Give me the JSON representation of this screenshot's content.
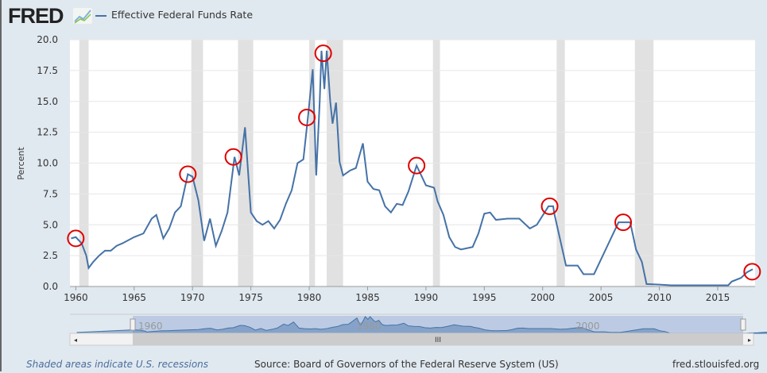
{
  "header": {
    "logo": "FRED",
    "legend_label": "Effective Federal Funds Rate"
  },
  "footer": {
    "recession_note": "Shaded areas indicate U.S. recessions",
    "source": "Source: Board of Governors of the Federal Reserve System (US)",
    "site": "fred.stlouisfed.org"
  },
  "navigator": {
    "labels": [
      "1960",
      "1980",
      "2000"
    ]
  },
  "colors": {
    "line": "#4572a7",
    "recession": "#e1e1e1",
    "circle": "#e00000"
  },
  "chart_data": {
    "type": "line",
    "title": "Effective Federal Funds Rate",
    "ylabel": "Percent",
    "xlabel": "",
    "xlim": [
      1959.5,
      2018.2
    ],
    "ylim": [
      0,
      20
    ],
    "yticks": [
      "0.0",
      "2.5",
      "5.0",
      "7.5",
      "10.0",
      "12.5",
      "15.0",
      "17.5",
      "20.0"
    ],
    "xticks": [
      "1960",
      "1965",
      "1970",
      "1975",
      "1980",
      "1985",
      "1990",
      "1995",
      "2000",
      "2005",
      "2010",
      "2015"
    ],
    "recessions": [
      [
        1960.3,
        1961.1
      ],
      [
        1969.9,
        1970.9
      ],
      [
        1973.9,
        1975.2
      ],
      [
        1980.0,
        1980.5
      ],
      [
        1981.5,
        1982.9
      ],
      [
        1990.6,
        1991.2
      ],
      [
        2001.2,
        2001.9
      ],
      [
        2007.9,
        2009.5
      ]
    ],
    "series": [
      {
        "name": "Effective Federal Funds Rate",
        "points": [
          [
            1959.6,
            3.9
          ],
          [
            1960,
            4.0
          ],
          [
            1960.5,
            3.5
          ],
          [
            1960.9,
            2.5
          ],
          [
            1961.1,
            1.5
          ],
          [
            1961.5,
            2.0
          ],
          [
            1962,
            2.5
          ],
          [
            1962.5,
            2.9
          ],
          [
            1963,
            2.9
          ],
          [
            1963.5,
            3.3
          ],
          [
            1964,
            3.5
          ],
          [
            1965,
            4.0
          ],
          [
            1965.8,
            4.3
          ],
          [
            1966.5,
            5.5
          ],
          [
            1966.9,
            5.8
          ],
          [
            1967.5,
            3.9
          ],
          [
            1968,
            4.7
          ],
          [
            1968.5,
            6.0
          ],
          [
            1969,
            6.5
          ],
          [
            1969.6,
            9.1
          ],
          [
            1970,
            8.9
          ],
          [
            1970.5,
            7.0
          ],
          [
            1971,
            3.7
          ],
          [
            1971.5,
            5.5
          ],
          [
            1972,
            3.3
          ],
          [
            1972.5,
            4.5
          ],
          [
            1973,
            6.0
          ],
          [
            1973.6,
            10.5
          ],
          [
            1974,
            9.0
          ],
          [
            1974.5,
            12.9
          ],
          [
            1975,
            6.0
          ],
          [
            1975.5,
            5.3
          ],
          [
            1976,
            5.0
          ],
          [
            1976.5,
            5.3
          ],
          [
            1977,
            4.7
          ],
          [
            1977.5,
            5.4
          ],
          [
            1978,
            6.7
          ],
          [
            1978.5,
            7.8
          ],
          [
            1979,
            10.0
          ],
          [
            1979.5,
            10.3
          ],
          [
            1979.9,
            13.8
          ],
          [
            1980.3,
            17.6
          ],
          [
            1980.6,
            9.0
          ],
          [
            1980.9,
            15.0
          ],
          [
            1981.05,
            19.1
          ],
          [
            1981.3,
            16.0
          ],
          [
            1981.5,
            19.1
          ],
          [
            1981.8,
            15.0
          ],
          [
            1982,
            13.2
          ],
          [
            1982.3,
            14.9
          ],
          [
            1982.6,
            10.1
          ],
          [
            1982.9,
            9.0
          ],
          [
            1983.5,
            9.4
          ],
          [
            1984,
            9.6
          ],
          [
            1984.6,
            11.6
          ],
          [
            1985,
            8.5
          ],
          [
            1985.5,
            7.9
          ],
          [
            1986,
            7.8
          ],
          [
            1986.5,
            6.5
          ],
          [
            1987,
            6.0
          ],
          [
            1987.5,
            6.7
          ],
          [
            1988,
            6.6
          ],
          [
            1988.5,
            7.7
          ],
          [
            1989.2,
            9.8
          ],
          [
            1989.7,
            8.8
          ],
          [
            1990,
            8.2
          ],
          [
            1990.7,
            8.0
          ],
          [
            1991,
            6.9
          ],
          [
            1991.5,
            5.8
          ],
          [
            1992,
            4.0
          ],
          [
            1992.5,
            3.2
          ],
          [
            1993,
            3.0
          ],
          [
            1994,
            3.2
          ],
          [
            1994.5,
            4.3
          ],
          [
            1995,
            5.9
          ],
          [
            1995.5,
            6.0
          ],
          [
            1996,
            5.4
          ],
          [
            1997,
            5.5
          ],
          [
            1998,
            5.5
          ],
          [
            1998.9,
            4.7
          ],
          [
            1999.5,
            5.0
          ],
          [
            2000.5,
            6.5
          ],
          [
            2000.9,
            6.5
          ],
          [
            2001,
            5.9
          ],
          [
            2001.5,
            3.8
          ],
          [
            2002,
            1.7
          ],
          [
            2003,
            1.7
          ],
          [
            2003.5,
            1.0
          ],
          [
            2004.4,
            1.0
          ],
          [
            2006.5,
            5.2
          ],
          [
            2007.5,
            5.2
          ],
          [
            2008,
            3.0
          ],
          [
            2008.5,
            2.0
          ],
          [
            2008.9,
            0.2
          ],
          [
            2010,
            0.15
          ],
          [
            2011,
            0.1
          ],
          [
            2015.9,
            0.1
          ],
          [
            2016.2,
            0.4
          ],
          [
            2017,
            0.7
          ],
          [
            2017.5,
            1.15
          ],
          [
            2018,
            1.4
          ]
        ]
      }
    ],
    "annotations": {
      "circled_points": [
        [
          1960,
          3.9
        ],
        [
          1969.6,
          9.1
        ],
        [
          1973.5,
          10.5
        ],
        [
          1979.8,
          13.7
        ],
        [
          1981.2,
          18.9
        ],
        [
          1989.2,
          9.8
        ],
        [
          2000.6,
          6.5
        ],
        [
          2006.9,
          5.2
        ],
        [
          2017.95,
          1.2
        ]
      ]
    }
  }
}
